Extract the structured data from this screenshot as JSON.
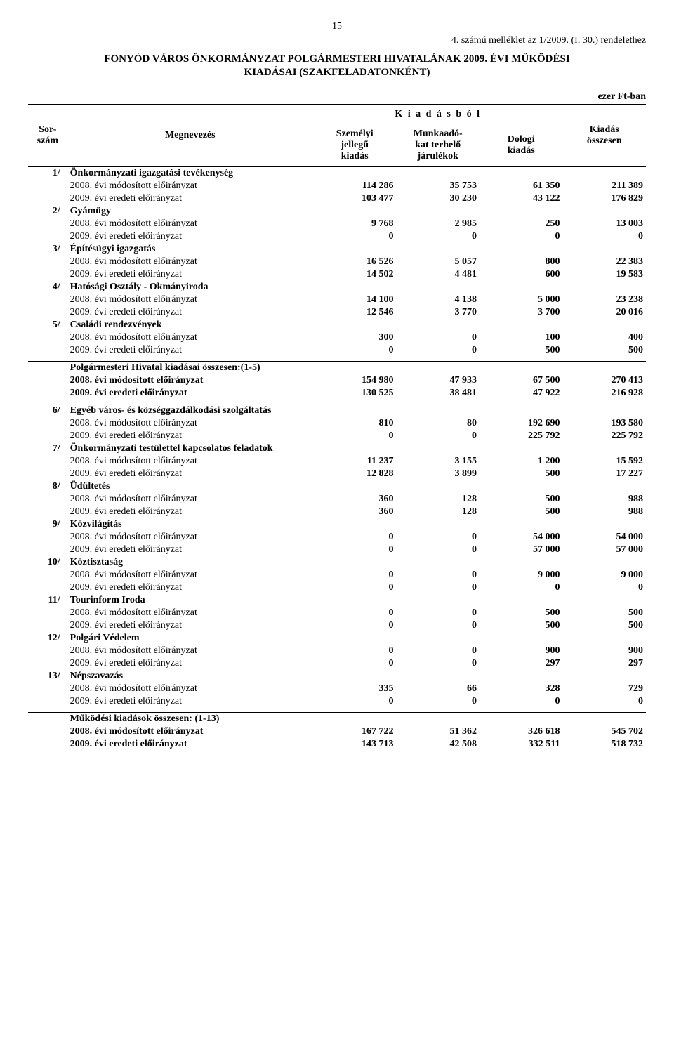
{
  "page_number": "15",
  "top_right": "4. számú melléklet az 1/2009. (I. 30.) rendelethez",
  "title": "FONYÓD VÁROS ÖNKORMÁNYZAT POLGÁRMESTERI HIVATALÁNAK 2009. ÉVI MŰKÖDÉSI",
  "subtitle": "KIADÁSAI (SZAKFELADATONKÉNT)",
  "unit": "ezer Ft-ban",
  "headers": {
    "sor": "Sor-\nszám",
    "meg": "Megnevezés",
    "kiadas_span": "K i a d á s b ó l",
    "szem": "Személyi\njellegű\nkiadás",
    "munk": "Munkaadó-\nkat terhelő\njárulékok",
    "dol": "Dologi\nkiadás",
    "ossz": "Kiadás\nösszesen"
  },
  "labels": {
    "mod": "2008. évi módosított előirányzat",
    "ered": "2009. évi eredeti előirányzat"
  },
  "block1": [
    {
      "sor": "1/",
      "name": "Önkormányzati igazgatási tevékenység",
      "mod": [
        "114 286",
        "35 753",
        "61 350",
        "211 389"
      ],
      "ered": [
        "103 477",
        "30 230",
        "43 122",
        "176 829"
      ]
    },
    {
      "sor": "2/",
      "name": "Gyámügy",
      "mod": [
        "9 768",
        "2 985",
        "250",
        "13 003"
      ],
      "ered": [
        "0",
        "0",
        "0",
        "0"
      ]
    },
    {
      "sor": "3/",
      "name": "Építésügyi igazgatás",
      "mod": [
        "16 526",
        "5 057",
        "800",
        "22 383"
      ],
      "ered": [
        "14 502",
        "4 481",
        "600",
        "19 583"
      ]
    },
    {
      "sor": "4/",
      "name": "Hatósági Osztály - Okmányiroda",
      "mod": [
        "14 100",
        "4 138",
        "5 000",
        "23 238"
      ],
      "ered": [
        "12 546",
        "3 770",
        "3 700",
        "20 016"
      ]
    },
    {
      "sor": "5/",
      "name": "Családi rendezvények",
      "mod": [
        "300",
        "0",
        "100",
        "400"
      ],
      "ered": [
        "0",
        "0",
        "500",
        "500"
      ]
    }
  ],
  "sum1": {
    "name": "Polgármesteri Hivatal kiadásai összesen:(1-5)",
    "mod": [
      "154 980",
      "47 933",
      "67 500",
      "270 413"
    ],
    "ered": [
      "130 525",
      "38 481",
      "47 922",
      "216 928"
    ]
  },
  "block2": [
    {
      "sor": "6/",
      "name": "Egyéb város- és községgazdálkodási szolgáltatás",
      "mod": [
        "810",
        "80",
        "192 690",
        "193 580"
      ],
      "ered": [
        "0",
        "0",
        "225 792",
        "225 792"
      ]
    },
    {
      "sor": "7/",
      "name": "Önkormányzati testülettel kapcsolatos feladatok",
      "mod": [
        "11 237",
        "3 155",
        "1 200",
        "15 592"
      ],
      "ered": [
        "12 828",
        "3 899",
        "500",
        "17 227"
      ]
    },
    {
      "sor": "8/",
      "name": "Üdültetés",
      "mod": [
        "360",
        "128",
        "500",
        "988"
      ],
      "ered": [
        "360",
        "128",
        "500",
        "988"
      ]
    },
    {
      "sor": "9/",
      "name": "Közvilágítás",
      "mod": [
        "0",
        "0",
        "54 000",
        "54 000"
      ],
      "ered": [
        "0",
        "0",
        "57 000",
        "57 000"
      ]
    },
    {
      "sor": "10/",
      "name": "Köztisztaság",
      "mod": [
        "0",
        "0",
        "9 000",
        "9 000"
      ],
      "ered": [
        "0",
        "0",
        "0",
        "0"
      ]
    },
    {
      "sor": "11/",
      "name": "Tourinform Iroda",
      "mod": [
        "0",
        "0",
        "500",
        "500"
      ],
      "ered": [
        "0",
        "0",
        "500",
        "500"
      ]
    },
    {
      "sor": "12/",
      "name": "Polgári Védelem",
      "mod": [
        "0",
        "0",
        "900",
        "900"
      ],
      "ered": [
        "0",
        "0",
        "297",
        "297"
      ]
    },
    {
      "sor": "13/",
      "name": "Népszavazás",
      "mod": [
        "335",
        "66",
        "328",
        "729"
      ],
      "ered": [
        "0",
        "0",
        "0",
        "0"
      ]
    }
  ],
  "sum2": {
    "name": "Működési kiadások összesen: (1-13)",
    "mod": [
      "167 722",
      "51 362",
      "326 618",
      "545 702"
    ],
    "ered": [
      "143 713",
      "42 508",
      "332 511",
      "518 732"
    ]
  }
}
